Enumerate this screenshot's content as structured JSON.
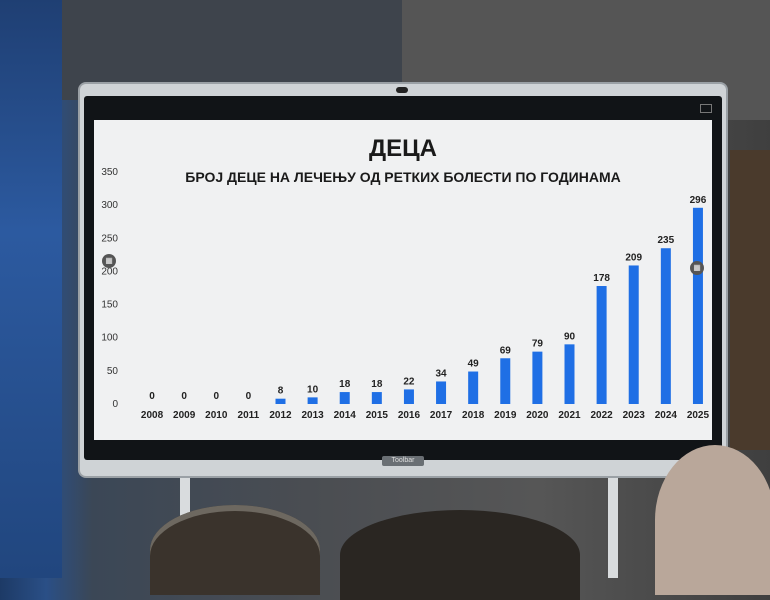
{
  "screen": {
    "toolbar_label": "Toolbar",
    "side_button_icon": "grid-icon"
  },
  "chart_data": {
    "type": "bar",
    "title": "ДЕЦА",
    "subtitle": "БРОЈ ДЕЦЕ НА ЛЕЧЕЊУ ОД РЕТКИХ БОЛЕСТИ ПО ГОДИНАМА",
    "categories": [
      "2008",
      "2009",
      "2010",
      "2011",
      "2012",
      "2013",
      "2014",
      "2015",
      "2016",
      "2017",
      "2018",
      "2019",
      "2020",
      "2021",
      "2022",
      "2023",
      "2024",
      "2025"
    ],
    "values": [
      0,
      0,
      0,
      0,
      8,
      10,
      18,
      18,
      22,
      34,
      49,
      69,
      79,
      90,
      178,
      209,
      235,
      296
    ],
    "ylim": [
      0,
      350
    ],
    "yticks": [
      0,
      50,
      100,
      150,
      200,
      250,
      300,
      350
    ],
    "bar_color": "#1f6fe5",
    "grid": false,
    "legend": "none"
  }
}
